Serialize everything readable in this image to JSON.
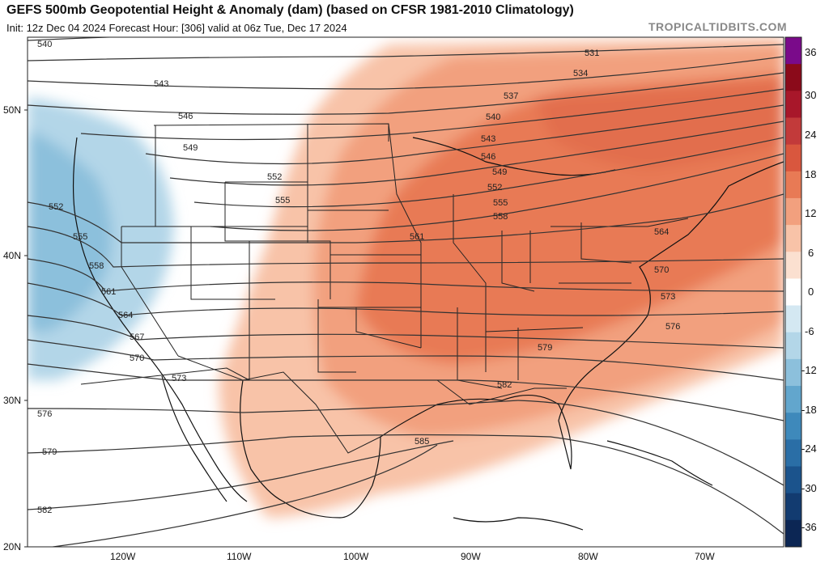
{
  "header": {
    "title": "GEFS 500mb Geopotential Height & Anomaly (dam) (based on CFSR 1981-2010 Climatology)",
    "subtitle": "Init: 12z Dec 04 2024   Forecast Hour: [306]   valid at 06z Tue, Dec 17 2024",
    "brand": "TROPICALTIDBITS.COM"
  },
  "map": {
    "lat_labels": [
      "50N",
      "40N",
      "30N",
      "20N"
    ],
    "lon_labels": [
      "120W",
      "110W",
      "100W",
      "90W",
      "80W",
      "70W"
    ],
    "contour_labels": [
      "540",
      "543",
      "546",
      "549",
      "552",
      "555",
      "558",
      "561",
      "564",
      "567",
      "570",
      "573",
      "576",
      "579",
      "582",
      "585",
      "531",
      "534",
      "537",
      "540",
      "543",
      "546",
      "549",
      "552",
      "555",
      "558",
      "561",
      "564",
      "570",
      "573",
      "576",
      "579",
      "582",
      "552",
      "555",
      "558",
      "561",
      "564",
      "567",
      "570",
      "573",
      "576",
      "579",
      "582"
    ]
  },
  "colorbar": {
    "ticks": [
      "36",
      "30",
      "24",
      "18",
      "12",
      "6",
      "0",
      "-6",
      "-12",
      "-18",
      "-24",
      "-30",
      "-36"
    ],
    "colors": [
      "#7a0a8a",
      "#8b0a1a",
      "#a8172a",
      "#c23a3a",
      "#d9573e",
      "#e87a55",
      "#f2a07e",
      "#f8c3a8",
      "#fbe0d0",
      "#ffffff",
      "#d4e8f2",
      "#b3d6e8",
      "#8cc0dc",
      "#62a6cd",
      "#3e89bb",
      "#2a6ea6",
      "#1b538c",
      "#123b70",
      "#0c2654"
    ]
  }
}
